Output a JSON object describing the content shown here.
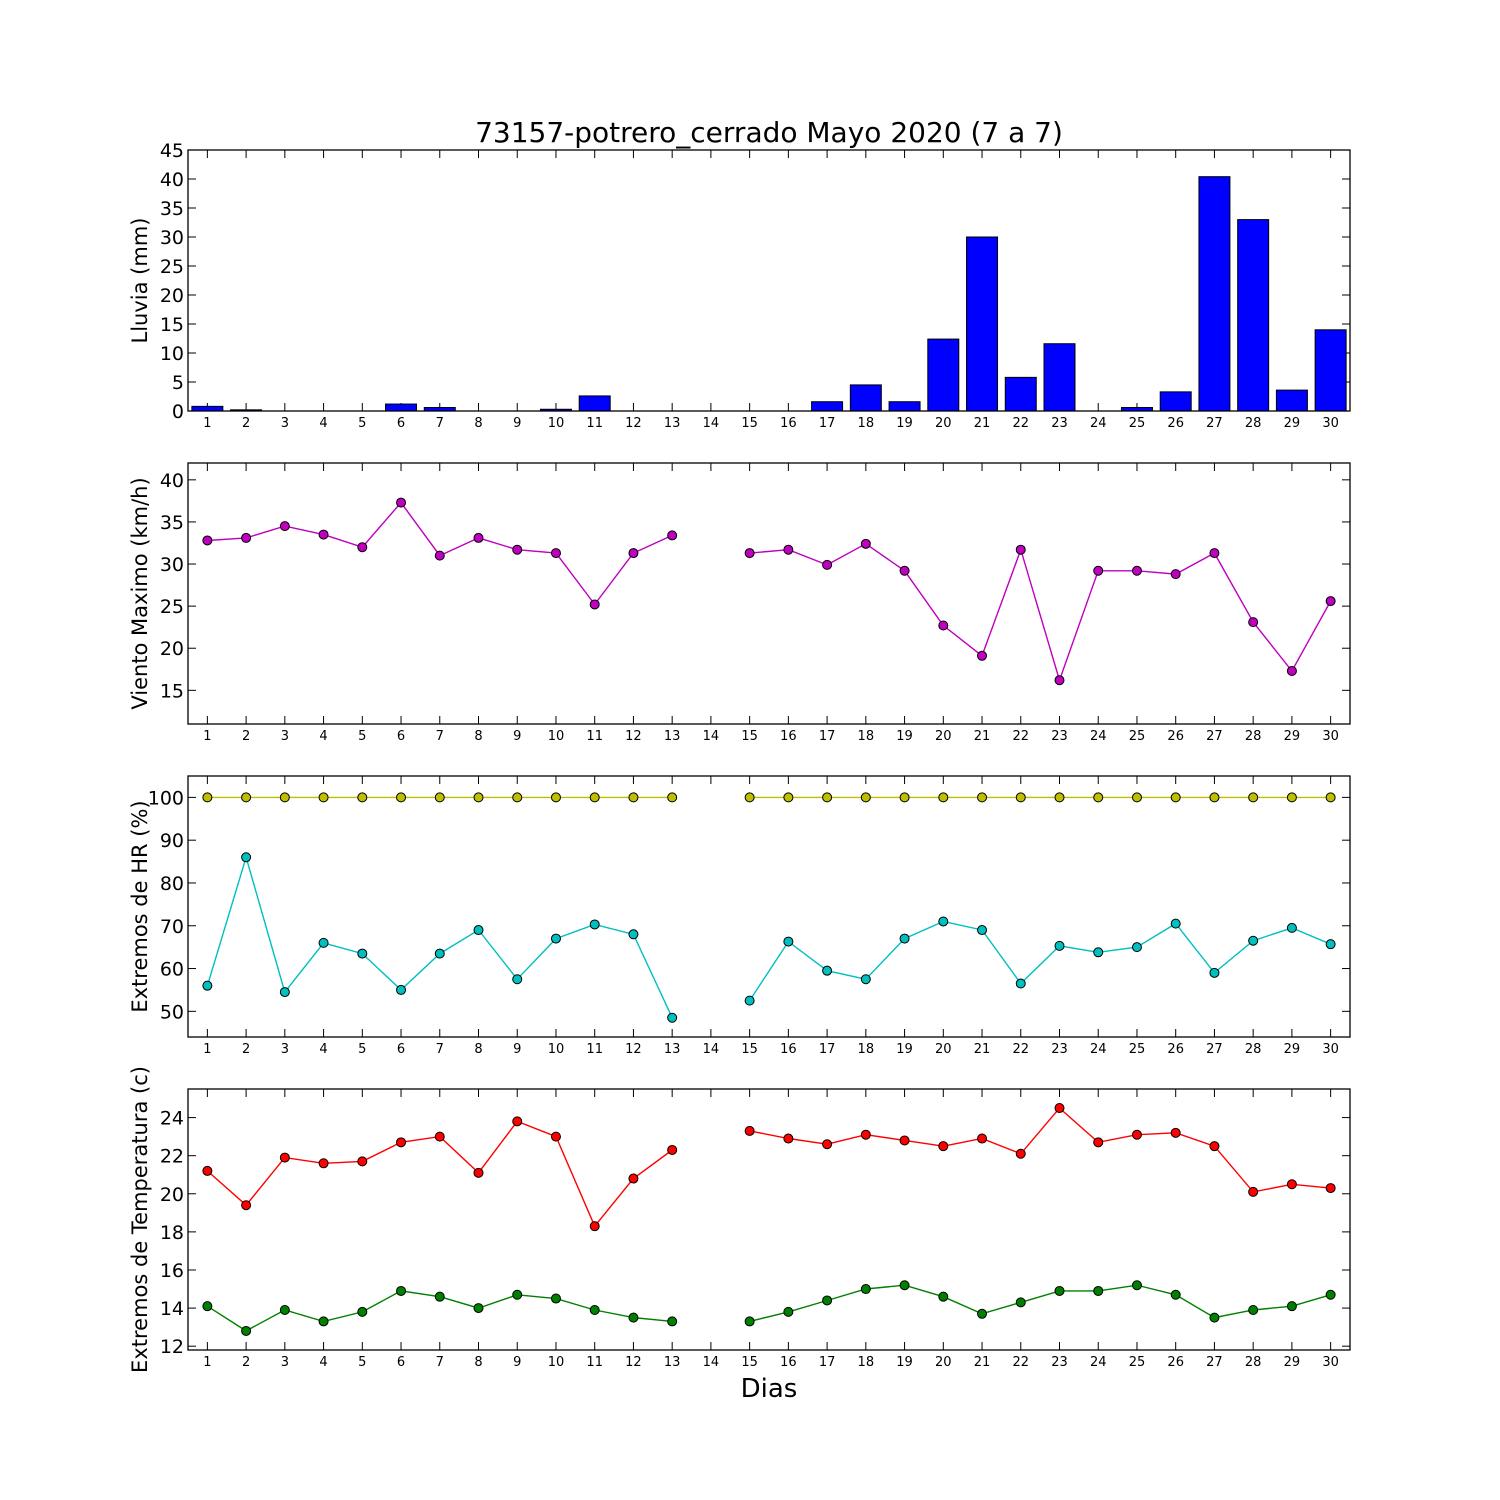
{
  "title": "73157-potrero_cerrado Mayo 2020  (7 a 7)",
  "xlabel": "Dias",
  "days": [
    1,
    2,
    3,
    4,
    5,
    6,
    7,
    8,
    9,
    10,
    11,
    12,
    13,
    14,
    15,
    16,
    17,
    18,
    19,
    20,
    21,
    22,
    23,
    24,
    25,
    26,
    27,
    28,
    29,
    30
  ],
  "chart_data": [
    {
      "type": "bar",
      "ylabel": "Lluvia (mm)",
      "ylim": [
        0,
        45
      ],
      "yticks": [
        0,
        5,
        10,
        15,
        20,
        25,
        30,
        35,
        40,
        45
      ],
      "grid": false,
      "series": [
        {
          "color": "#0000ff",
          "values": [
            0.8,
            0.2,
            0,
            0,
            0,
            1.2,
            0.6,
            0,
            0,
            0.3,
            2.6,
            0,
            0,
            0,
            0,
            0,
            1.6,
            4.5,
            1.6,
            12.4,
            30.0,
            5.8,
            11.6,
            0,
            0.6,
            3.3,
            40.4,
            33.0,
            3.6,
            14.0
          ]
        }
      ]
    },
    {
      "type": "line",
      "ylabel": "Viento Maximo (km/h)",
      "ylim": [
        11,
        42
      ],
      "yticks": [
        15,
        20,
        25,
        30,
        35,
        40
      ],
      "grid": false,
      "series": [
        {
          "color": "#bf00bf",
          "values": [
            32.8,
            33.1,
            34.5,
            33.5,
            32.0,
            37.3,
            31.0,
            33.1,
            31.7,
            31.3,
            25.2,
            31.3,
            33.4,
            null,
            31.3,
            31.7,
            29.9,
            32.4,
            29.2,
            22.7,
            19.1,
            31.7,
            16.2,
            29.2,
            29.2,
            28.8,
            31.3,
            23.1,
            17.3,
            25.6
          ]
        }
      ]
    },
    {
      "type": "line",
      "ylabel": "Extremos de HR (%)",
      "ylim": [
        44,
        105
      ],
      "yticks": [
        50,
        60,
        70,
        80,
        90,
        100
      ],
      "grid": false,
      "series": [
        {
          "color": "#bfbf00",
          "values": [
            100,
            100,
            100,
            100,
            100,
            100,
            100,
            100,
            100,
            100,
            100,
            100,
            100,
            null,
            100,
            100,
            100,
            100,
            100,
            100,
            100,
            100,
            100,
            100,
            100,
            100,
            100,
            100,
            100,
            100
          ]
        },
        {
          "color": "#00bfbf",
          "values": [
            56,
            86,
            54.5,
            66,
            63.5,
            55,
            63.5,
            69,
            57.5,
            67,
            70.3,
            68,
            48.5,
            null,
            52.5,
            66.3,
            59.5,
            57.5,
            67,
            71,
            69,
            56.5,
            65.3,
            63.8,
            65,
            70.5,
            59,
            66.5,
            69.5,
            65.7
          ]
        }
      ]
    },
    {
      "type": "line",
      "ylabel": "Extremos de Temperatura (c)",
      "ylim": [
        11.8,
        25.5
      ],
      "yticks": [
        12,
        14,
        16,
        18,
        20,
        22,
        24
      ],
      "grid": false,
      "series": [
        {
          "color": "#ff0000",
          "values": [
            21.2,
            19.4,
            21.9,
            21.6,
            21.7,
            22.7,
            23.0,
            21.1,
            23.8,
            23.0,
            18.3,
            20.8,
            22.3,
            null,
            23.3,
            22.9,
            22.6,
            23.1,
            22.8,
            22.5,
            22.9,
            22.1,
            24.5,
            22.7,
            23.1,
            23.2,
            22.5,
            20.1,
            20.5,
            20.3
          ]
        },
        {
          "color": "#008000",
          "values": [
            14.1,
            12.8,
            13.9,
            13.3,
            13.8,
            14.9,
            14.6,
            14.0,
            14.7,
            14.5,
            13.9,
            13.5,
            13.3,
            null,
            13.3,
            13.8,
            14.4,
            15.0,
            15.2,
            14.6,
            13.7,
            14.3,
            14.9,
            14.9,
            15.2,
            14.7,
            13.5,
            13.9,
            14.1,
            14.7
          ]
        }
      ]
    }
  ]
}
